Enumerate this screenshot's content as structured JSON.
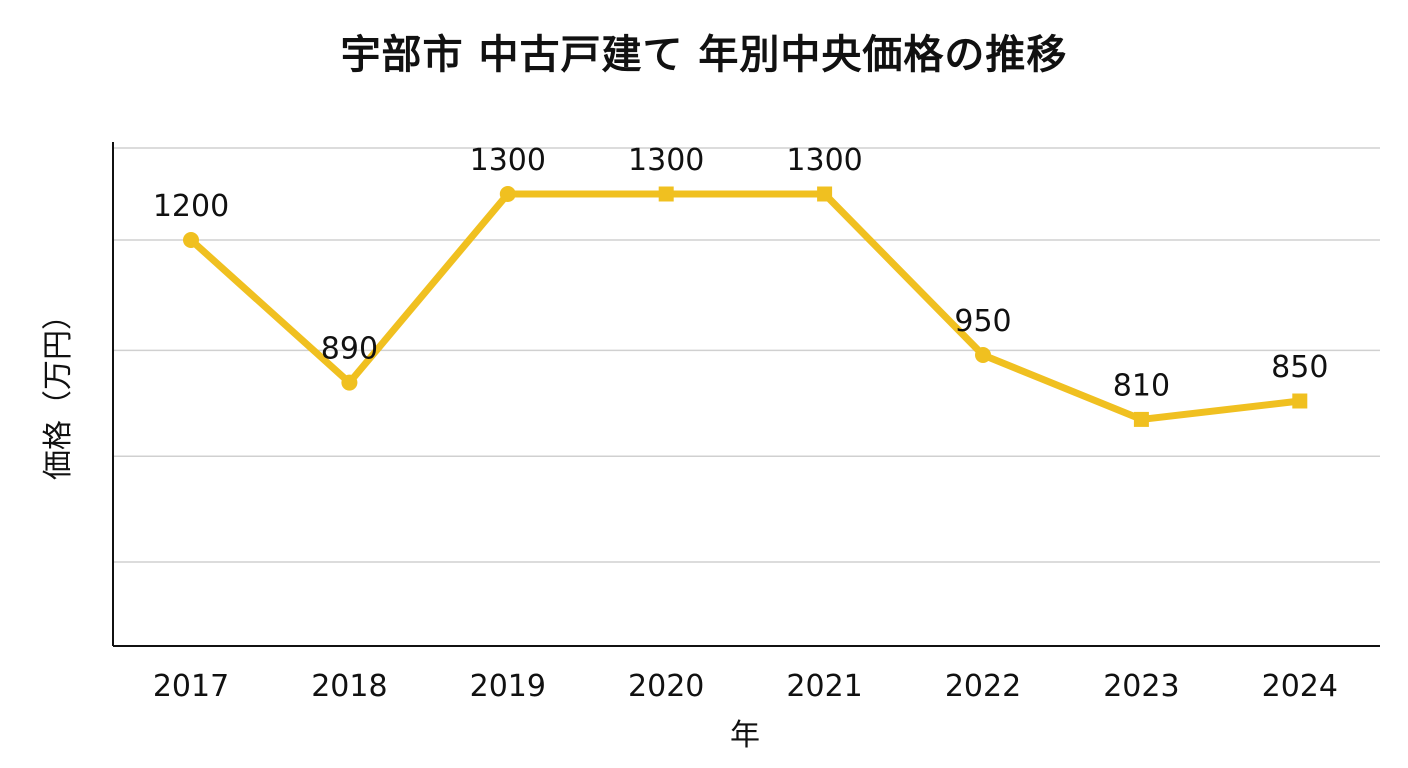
{
  "chart_data": {
    "type": "line",
    "title": "宇部市 中古戸建て 年別中央価格の推移",
    "xlabel": "年",
    "ylabel": "価格（万円）",
    "categories": [
      "2017",
      "2018",
      "2019",
      "2020",
      "2021",
      "2022",
      "2023",
      "2024"
    ],
    "series": [
      {
        "values": [
          1200,
          890,
          1300,
          1300,
          1300,
          950,
          810,
          850
        ],
        "markers": [
          "circle",
          "circle",
          "circle",
          "square",
          "square",
          "circle",
          "square",
          "square"
        ],
        "color": "#F0C020"
      }
    ],
    "ylim": [
      300,
      1400
    ],
    "gridlines": [
      500,
      730,
      960,
      1200,
      1400
    ],
    "grid": "horizontal",
    "legend": "none"
  }
}
